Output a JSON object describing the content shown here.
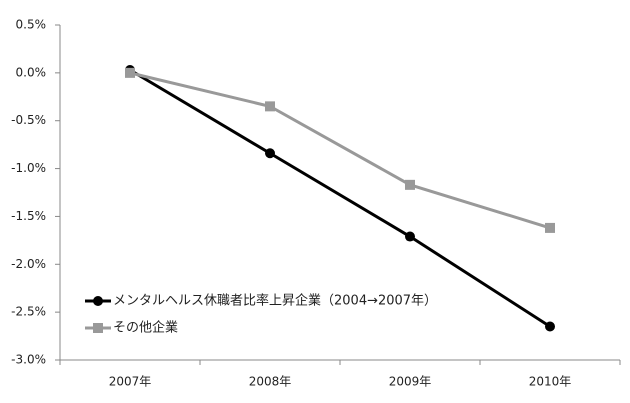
{
  "chart_data": {
    "type": "line",
    "categories": [
      "2007年",
      "2008年",
      "2009年",
      "2010年"
    ],
    "series": [
      {
        "name": "メンタルヘルス休職者比率上昇企業（2004→2007年）",
        "color": "#000000",
        "marker": "circle",
        "values": [
          0.03,
          -0.84,
          -1.71,
          -2.65
        ]
      },
      {
        "name": "その他企業",
        "color": "#999999",
        "marker": "square",
        "values": [
          0,
          -0.35,
          -1.17,
          -1.62
        ]
      }
    ],
    "ylim": [
      -3.0,
      0.5
    ],
    "yticks": [
      {
        "value": 0.5,
        "label": "0.5%"
      },
      {
        "value": 0.0,
        "label": "0.0%"
      },
      {
        "value": -0.5,
        "label": "-0.5%"
      },
      {
        "value": -1.0,
        "label": "-1.0%"
      },
      {
        "value": -1.5,
        "label": "-1.5%"
      },
      {
        "value": -2.0,
        "label": "-2.0%"
      },
      {
        "value": -2.5,
        "label": "-2.5%"
      },
      {
        "value": -3.0,
        "label": "-3.0%"
      }
    ],
    "grid": false,
    "legend": "lower left"
  }
}
